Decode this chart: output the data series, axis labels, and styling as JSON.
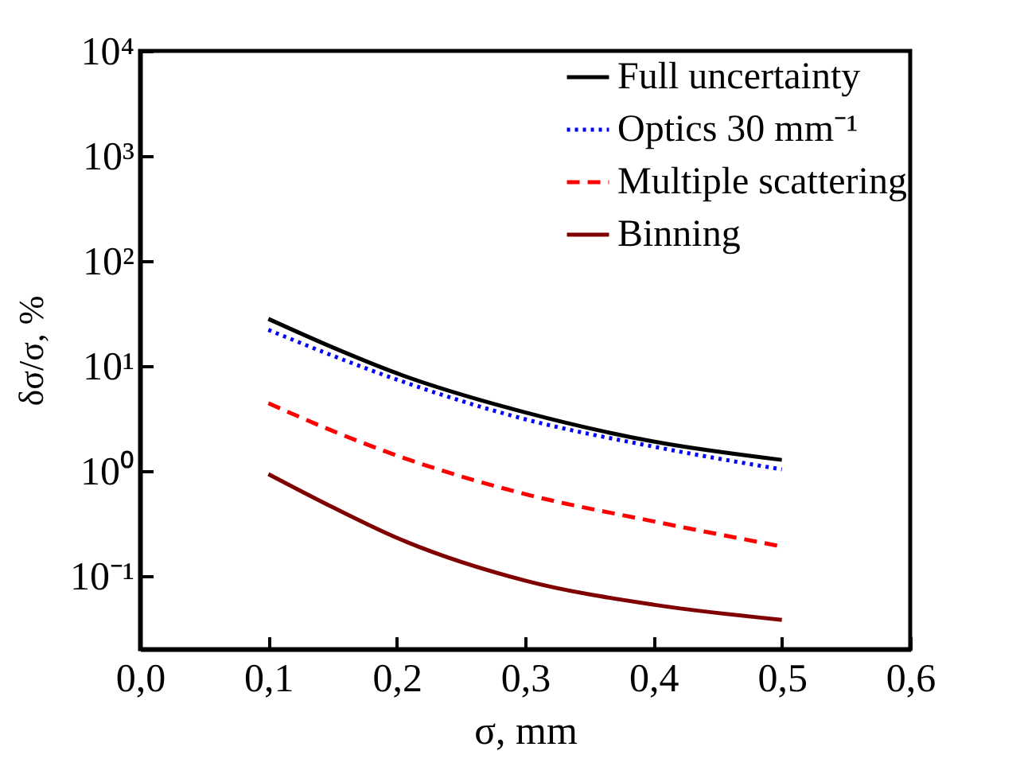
{
  "chart_data": {
    "type": "line",
    "xlabel": "σ, mm",
    "ylabel": "δσ/σ, %",
    "log": "y",
    "x": [
      0.1,
      0.15,
      0.2,
      0.3,
      0.4,
      0.5
    ],
    "xlim": [
      0,
      0.6
    ],
    "xticks": [
      {
        "value": 0,
        "label": "0,0"
      },
      {
        "value": 0.1,
        "label": "0,1"
      },
      {
        "value": 0.2,
        "label": "0,2"
      },
      {
        "value": 0.3,
        "label": "0,3"
      },
      {
        "value": 0.4,
        "label": "0,4"
      },
      {
        "value": 0.5,
        "label": "0,5"
      },
      {
        "value": 0.6,
        "label": "0,6"
      }
    ],
    "ylim": [
      0.02,
      10000
    ],
    "yticks": [
      {
        "value": 0.1,
        "label": "10⁻¹"
      },
      {
        "value": 1,
        "label": "10⁰"
      },
      {
        "value": 10,
        "label": "10¹"
      },
      {
        "value": 100,
        "label": "10²"
      },
      {
        "value": 1000,
        "label": "10³"
      },
      {
        "value": 10000,
        "label": "10⁴"
      }
    ],
    "legend": "top right",
    "grid": false,
    "series": [
      {
        "name": "Full uncertainty",
        "color": "#000000",
        "line_style": "solid",
        "values": [
          28,
          15,
          8.5,
          3.6,
          1.9,
          1.27
        ]
      },
      {
        "name": "Optics 30 mm⁻¹",
        "color": "#0000ff",
        "line_style": "dotted",
        "values": [
          22,
          12.5,
          7.4,
          3.1,
          1.7,
          1.03
        ]
      },
      {
        "name": "Multiple scattering",
        "color": "#ff0000",
        "line_style": "dashed",
        "values": [
          4.4,
          2.4,
          1.4,
          0.6,
          0.33,
          0.19
        ]
      },
      {
        "name": "Binning",
        "color": "#800000",
        "line_style": "solid",
        "values": [
          0.93,
          0.45,
          0.23,
          0.09,
          0.053,
          0.038
        ]
      }
    ]
  }
}
